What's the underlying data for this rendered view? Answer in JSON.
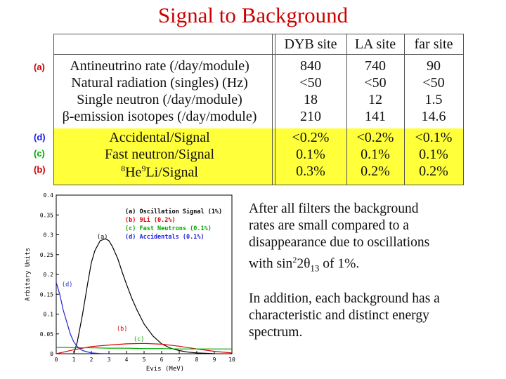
{
  "title": "Signal to Background",
  "table": {
    "headers": [
      "DYB site",
      "LA site",
      "far site"
    ],
    "rows": [
      {
        "tag": "(a)",
        "label": "Antineutrino rate (/day/module)",
        "values": [
          "840",
          "740",
          "90"
        ]
      },
      {
        "tag": "",
        "label": "Natural radiation (singles) (Hz)",
        "values": [
          "<50",
          "<50",
          "<50"
        ]
      },
      {
        "tag": "",
        "label": "Single neutron (/day/module)",
        "values": [
          "18",
          "12",
          "1.5"
        ]
      },
      {
        "tag": "",
        "label": "β-emission isotopes (/day/module)",
        "values": [
          "210",
          "141",
          "14.6"
        ]
      },
      {
        "tag": "(d)",
        "label": "Accidental/Signal",
        "values": [
          "<0.2%",
          "<0.2%",
          "<0.1%"
        ]
      },
      {
        "tag": "(c)",
        "label": "Fast neutron/Signal",
        "values": [
          "0.1%",
          "0.1%",
          "0.1%"
        ]
      },
      {
        "tag": "(b)",
        "label": "8He9Li/Signal",
        "values": [
          "0.3%",
          "0.2%",
          "0.2%"
        ]
      }
    ],
    "colors": {
      "highlight": "#ffff3a",
      "tag_a": "#cc0000",
      "tag_d": "#1a1aee",
      "tag_c": "#00aa00",
      "tag_b": "#cc0000"
    }
  },
  "paragraphs": {
    "p1_lines": [
      "After all filters the background",
      "rates are small compared to a",
      "disappearance due to oscillations"
    ],
    "p1_last_prefix": "with sin",
    "p1_last_sup": "2",
    "p1_last_mid": "2θ",
    "p1_last_sub": "13",
    "p1_last_suffix": " of 1%.",
    "p2_lines": [
      "In addition, each background has a",
      "characteristic and distinct energy",
      "spectrum."
    ]
  },
  "chart_data": {
    "type": "line",
    "ylabel": "Arbitary Units",
    "xlabel": "Evis (MeV)",
    "xlim": [
      0,
      10
    ],
    "ylim": [
      0,
      0.4
    ],
    "x_ticks": [
      "0",
      "1",
      "2",
      "3",
      "4",
      "5",
      "6",
      "7",
      "8",
      "9",
      "10"
    ],
    "y_ticks": [
      "0",
      "0.05",
      "0.1",
      "0.15",
      "0.2",
      "0.25",
      "0.3",
      "0.35",
      "0.4"
    ],
    "legend": [
      {
        "text": "(a) Oscillation Signal (1%)",
        "color": "#000000"
      },
      {
        "text": "(b) 9Li (0.2%)",
        "color": "#dd0000"
      },
      {
        "text": "(c) Fast Neutrons (0.1%)",
        "color": "#00aa00"
      },
      {
        "text": "(d) Accidentals (0.1%)",
        "color": "#2222dd"
      }
    ],
    "curve_labels": [
      "(a)",
      "(b)",
      "(c)",
      "(d)"
    ],
    "series": [
      {
        "name": "(a)",
        "color": "#000000",
        "x": [
          1.0,
          1.2,
          1.5,
          1.8,
          2.0,
          2.2,
          2.5,
          2.8,
          3.0,
          3.2,
          3.5,
          3.8,
          4.0,
          4.3,
          4.6,
          5.0,
          5.5,
          6.0,
          6.5,
          7.0,
          7.5,
          8.0,
          8.5,
          9.0
        ],
        "y": [
          0.0,
          0.03,
          0.1,
          0.18,
          0.23,
          0.26,
          0.285,
          0.29,
          0.285,
          0.27,
          0.24,
          0.2,
          0.175,
          0.14,
          0.11,
          0.075,
          0.045,
          0.025,
          0.014,
          0.008,
          0.004,
          0.002,
          0.001,
          0.0
        ]
      },
      {
        "name": "(b)",
        "color": "#dd0000",
        "x": [
          0.0,
          0.5,
          1.0,
          1.5,
          2.0,
          3.0,
          4.0,
          5.0,
          6.0,
          7.0,
          8.0,
          9.0,
          10.0
        ],
        "y": [
          0.0,
          0.005,
          0.01,
          0.014,
          0.018,
          0.022,
          0.025,
          0.026,
          0.024,
          0.019,
          0.012,
          0.006,
          0.002
        ]
      },
      {
        "name": "(c)",
        "color": "#00aa00",
        "x": [
          0.0,
          0.5,
          1.0,
          2.0,
          3.0,
          4.0,
          5.0,
          6.0,
          7.0,
          8.0,
          9.0,
          10.0
        ],
        "y": [
          0.016,
          0.016,
          0.015,
          0.015,
          0.014,
          0.014,
          0.013,
          0.013,
          0.012,
          0.012,
          0.012,
          0.012
        ]
      },
      {
        "name": "(d)",
        "color": "#2222dd",
        "x": [
          0.0,
          0.2,
          0.4,
          0.6,
          0.8,
          1.0,
          1.2,
          1.5,
          2.0,
          2.5,
          3.0
        ],
        "y": [
          0.18,
          0.15,
          0.11,
          0.08,
          0.05,
          0.03,
          0.018,
          0.008,
          0.002,
          0.0005,
          0.0
        ]
      }
    ]
  }
}
